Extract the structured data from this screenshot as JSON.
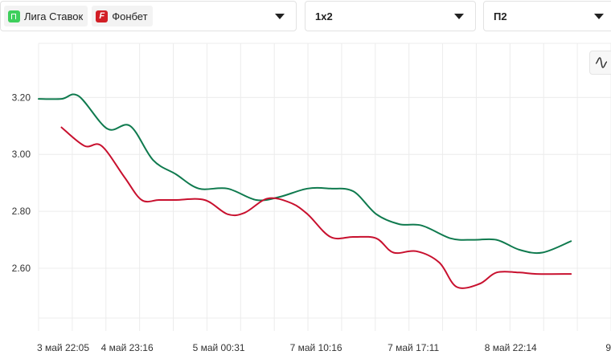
{
  "controls": {
    "bookmakers": [
      {
        "name": "Лига Ставок",
        "logo": "liga-stavok-logo",
        "color": "#3ecf5c"
      },
      {
        "name": "Фонбет",
        "logo": "fonbet-logo",
        "logo_letter": "F",
        "color": "#d21f26"
      }
    ],
    "market": "1x2",
    "outcome": "П2",
    "smooth_toggle_icon": "wave-icon"
  },
  "chart_data": {
    "type": "line",
    "title": "",
    "xlabel": "",
    "ylabel": "",
    "ylim": [
      2.38,
      3.39
    ],
    "yticks": [
      2.6,
      2.8,
      3.0,
      3.2
    ],
    "ytick_labels": [
      "2.60",
      "2.80",
      "3.00",
      "3.20"
    ],
    "grid": true,
    "xtick_labels": [
      "3 май 22:05",
      "4 май 23:16",
      "5 май 00:31",
      "7 май 10:16",
      "7 май 17:11",
      "8 май 22:14",
      "9"
    ],
    "series": [
      {
        "name": "Лига Ставок",
        "color": "#0f7a4e",
        "points": [
          [
            0.0,
            3.195
          ],
          [
            0.04,
            3.195
          ],
          [
            0.07,
            3.205
          ],
          [
            0.12,
            3.09
          ],
          [
            0.16,
            3.1
          ],
          [
            0.2,
            2.98
          ],
          [
            0.24,
            2.93
          ],
          [
            0.28,
            2.88
          ],
          [
            0.33,
            2.88
          ],
          [
            0.38,
            2.84
          ],
          [
            0.42,
            2.85
          ],
          [
            0.47,
            2.88
          ],
          [
            0.51,
            2.88
          ],
          [
            0.55,
            2.87
          ],
          [
            0.59,
            2.79
          ],
          [
            0.63,
            2.755
          ],
          [
            0.67,
            2.75
          ],
          [
            0.72,
            2.705
          ],
          [
            0.76,
            2.7
          ],
          [
            0.8,
            2.7
          ],
          [
            0.84,
            2.665
          ],
          [
            0.88,
            2.655
          ],
          [
            0.93,
            2.695
          ]
        ]
      },
      {
        "name": "Фонбет",
        "color": "#c8102e",
        "points": [
          [
            0.04,
            3.095
          ],
          [
            0.08,
            3.03
          ],
          [
            0.11,
            3.03
          ],
          [
            0.15,
            2.92
          ],
          [
            0.18,
            2.84
          ],
          [
            0.21,
            2.84
          ],
          [
            0.24,
            2.84
          ],
          [
            0.29,
            2.84
          ],
          [
            0.33,
            2.79
          ],
          [
            0.36,
            2.795
          ],
          [
            0.4,
            2.845
          ],
          [
            0.44,
            2.83
          ],
          [
            0.47,
            2.79
          ],
          [
            0.51,
            2.71
          ],
          [
            0.55,
            2.71
          ],
          [
            0.59,
            2.705
          ],
          [
            0.62,
            2.655
          ],
          [
            0.66,
            2.66
          ],
          [
            0.7,
            2.62
          ],
          [
            0.73,
            2.535
          ],
          [
            0.77,
            2.545
          ],
          [
            0.8,
            2.585
          ],
          [
            0.84,
            2.585
          ],
          [
            0.87,
            2.58
          ],
          [
            0.93,
            2.58
          ]
        ]
      }
    ]
  }
}
